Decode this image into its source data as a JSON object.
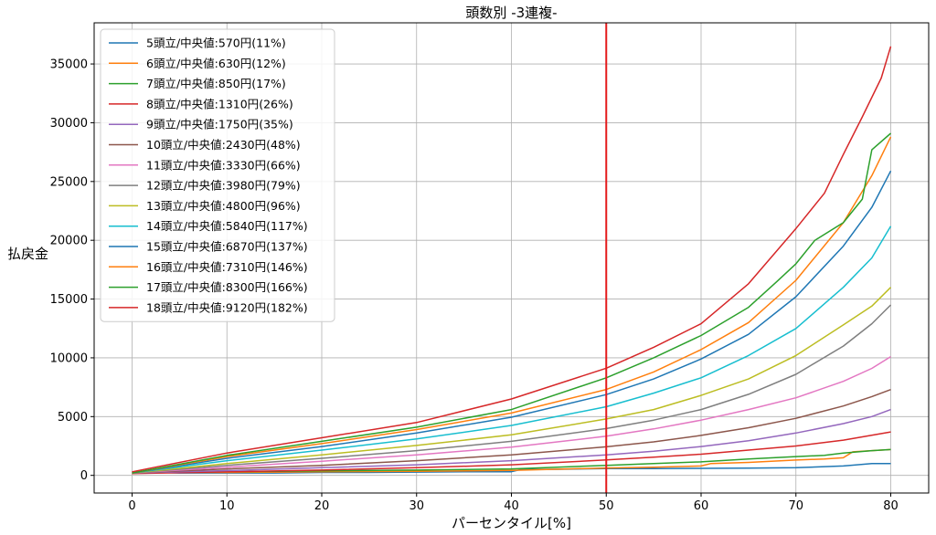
{
  "chart_data": {
    "type": "line",
    "title": "頭数別 -3連複-",
    "xlabel": "パーセンタイル[%]",
    "ylabel": "払戻金",
    "xlim": [
      -4,
      84
    ],
    "ylim": [
      -1500,
      38500
    ],
    "xticks": [
      0,
      10,
      20,
      30,
      40,
      50,
      60,
      70,
      80
    ],
    "yticks": [
      0,
      5000,
      10000,
      15000,
      20000,
      25000,
      30000,
      35000
    ],
    "grid": true,
    "legend_position": "top-left",
    "vline": {
      "x": 50,
      "color": "#e41a1c"
    },
    "series": [
      {
        "name": "5頭立/中央値:570円(11%)",
        "color": "#1f77b4",
        "points": [
          [
            0,
            300
          ],
          [
            5,
            200
          ],
          [
            10,
            200
          ],
          [
            15,
            200
          ],
          [
            20,
            250
          ],
          [
            25,
            250
          ],
          [
            30,
            280
          ],
          [
            35,
            300
          ],
          [
            40,
            310
          ],
          [
            41,
            500
          ],
          [
            45,
            520
          ],
          [
            50,
            570
          ],
          [
            55,
            580
          ],
          [
            60,
            600
          ],
          [
            65,
            620
          ],
          [
            70,
            650
          ],
          [
            75,
            800
          ],
          [
            78,
            1000
          ],
          [
            80,
            1000
          ]
        ]
      },
      {
        "name": "6頭立/中央値:630円(12%)",
        "color": "#ff7f0e",
        "points": [
          [
            0,
            250
          ],
          [
            10,
            250
          ],
          [
            20,
            300
          ],
          [
            30,
            350
          ],
          [
            40,
            420
          ],
          [
            50,
            630
          ],
          [
            55,
            700
          ],
          [
            60,
            800
          ],
          [
            61,
            1000
          ],
          [
            65,
            1100
          ],
          [
            70,
            1300
          ],
          [
            73,
            1400
          ],
          [
            75,
            1500
          ],
          [
            76,
            2000
          ],
          [
            80,
            2200
          ]
        ]
      },
      {
        "name": "7頭立/中央値:850円(17%)",
        "color": "#2ca02c",
        "points": [
          [
            0,
            250
          ],
          [
            10,
            300
          ],
          [
            20,
            380
          ],
          [
            30,
            450
          ],
          [
            40,
            550
          ],
          [
            50,
            850
          ],
          [
            55,
            1000
          ],
          [
            60,
            1150
          ],
          [
            65,
            1400
          ],
          [
            70,
            1600
          ],
          [
            73,
            1700
          ],
          [
            75,
            1900
          ],
          [
            78,
            2100
          ],
          [
            80,
            2200
          ]
        ]
      },
      {
        "name": "8頭立/中央値:1310円(26%)",
        "color": "#d62728",
        "points": [
          [
            0,
            150
          ],
          [
            10,
            300
          ],
          [
            20,
            450
          ],
          [
            30,
            650
          ],
          [
            40,
            900
          ],
          [
            50,
            1310
          ],
          [
            55,
            1550
          ],
          [
            60,
            1800
          ],
          [
            65,
            2150
          ],
          [
            70,
            2500
          ],
          [
            75,
            3000
          ],
          [
            80,
            3700
          ]
        ]
      },
      {
        "name": "9頭立/中央値:1750円(35%)",
        "color": "#9467bd",
        "points": [
          [
            0,
            200
          ],
          [
            10,
            400
          ],
          [
            20,
            650
          ],
          [
            30,
            900
          ],
          [
            40,
            1250
          ],
          [
            50,
            1750
          ],
          [
            55,
            2050
          ],
          [
            60,
            2450
          ],
          [
            65,
            2950
          ],
          [
            70,
            3600
          ],
          [
            75,
            4400
          ],
          [
            78,
            5000
          ],
          [
            80,
            5600
          ]
        ]
      },
      {
        "name": "10頭立/中央値:2430円(48%)",
        "color": "#8c564b",
        "points": [
          [
            0,
            200
          ],
          [
            10,
            550
          ],
          [
            20,
            850
          ],
          [
            30,
            1250
          ],
          [
            40,
            1750
          ],
          [
            50,
            2430
          ],
          [
            55,
            2850
          ],
          [
            60,
            3400
          ],
          [
            65,
            4050
          ],
          [
            70,
            4850
          ],
          [
            75,
            5900
          ],
          [
            78,
            6700
          ],
          [
            80,
            7300
          ]
        ]
      },
      {
        "name": "11頭立/中央値:3330円(66%)",
        "color": "#e377c2",
        "points": [
          [
            0,
            200
          ],
          [
            10,
            700
          ],
          [
            20,
            1200
          ],
          [
            30,
            1750
          ],
          [
            40,
            2400
          ],
          [
            50,
            3330
          ],
          [
            55,
            3950
          ],
          [
            60,
            4700
          ],
          [
            65,
            5600
          ],
          [
            70,
            6600
          ],
          [
            75,
            8000
          ],
          [
            78,
            9100
          ],
          [
            80,
            10100
          ]
        ]
      },
      {
        "name": "12頭立/中央値:3980円(79%)",
        "color": "#7f7f7f",
        "points": [
          [
            0,
            200
          ],
          [
            10,
            850
          ],
          [
            20,
            1450
          ],
          [
            30,
            2100
          ],
          [
            40,
            2900
          ],
          [
            50,
            3980
          ],
          [
            55,
            4700
          ],
          [
            60,
            5600
          ],
          [
            65,
            6900
          ],
          [
            70,
            8600
          ],
          [
            75,
            11000
          ],
          [
            78,
            12900
          ],
          [
            80,
            14500
          ]
        ]
      },
      {
        "name": "13頭立/中央値:4800円(96%)",
        "color": "#bcbd22",
        "points": [
          [
            0,
            200
          ],
          [
            10,
            1000
          ],
          [
            20,
            1750
          ],
          [
            30,
            2550
          ],
          [
            40,
            3450
          ],
          [
            50,
            4800
          ],
          [
            55,
            5600
          ],
          [
            60,
            6800
          ],
          [
            65,
            8200
          ],
          [
            70,
            10200
          ],
          [
            75,
            12800
          ],
          [
            78,
            14400
          ],
          [
            80,
            16000
          ]
        ]
      },
      {
        "name": "14頭立/中央値:5840円(117%)",
        "color": "#17becf",
        "points": [
          [
            0,
            200
          ],
          [
            10,
            1250
          ],
          [
            20,
            2150
          ],
          [
            30,
            3100
          ],
          [
            40,
            4250
          ],
          [
            50,
            5840
          ],
          [
            55,
            7000
          ],
          [
            60,
            8300
          ],
          [
            65,
            10200
          ],
          [
            70,
            12500
          ],
          [
            75,
            16000
          ],
          [
            78,
            18500
          ],
          [
            80,
            21200
          ]
        ]
      },
      {
        "name": "15頭立/中央値:6870円(137%)",
        "color": "#1f77b4",
        "points": [
          [
            0,
            200
          ],
          [
            10,
            1450
          ],
          [
            20,
            2450
          ],
          [
            30,
            3600
          ],
          [
            40,
            4950
          ],
          [
            50,
            6870
          ],
          [
            55,
            8200
          ],
          [
            60,
            9900
          ],
          [
            65,
            12000
          ],
          [
            70,
            15200
          ],
          [
            75,
            19500
          ],
          [
            78,
            22800
          ],
          [
            80,
            25900
          ]
        ]
      },
      {
        "name": "16頭立/中央値:7310円(146%)",
        "color": "#ff7f0e",
        "points": [
          [
            0,
            200
          ],
          [
            10,
            1600
          ],
          [
            20,
            2700
          ],
          [
            30,
            3900
          ],
          [
            40,
            5300
          ],
          [
            50,
            7310
          ],
          [
            55,
            8800
          ],
          [
            60,
            10700
          ],
          [
            65,
            13000
          ],
          [
            70,
            16600
          ],
          [
            75,
            21500
          ],
          [
            78,
            25500
          ],
          [
            80,
            28800
          ]
        ]
      },
      {
        "name": "17頭立/中央値:8300円(166%)",
        "color": "#2ca02c",
        "points": [
          [
            0,
            200
          ],
          [
            10,
            1700
          ],
          [
            20,
            2900
          ],
          [
            30,
            4100
          ],
          [
            40,
            5600
          ],
          [
            50,
            8300
          ],
          [
            55,
            10000
          ],
          [
            60,
            11900
          ],
          [
            65,
            14300
          ],
          [
            68,
            16500
          ],
          [
            70,
            18000
          ],
          [
            72,
            20000
          ],
          [
            75,
            21500
          ],
          [
            77,
            23500
          ],
          [
            78,
            27700
          ],
          [
            80,
            29100
          ]
        ]
      },
      {
        "name": "18頭立/中央値:9120円(182%)",
        "color": "#d62728",
        "points": [
          [
            0,
            300
          ],
          [
            10,
            1900
          ],
          [
            20,
            3200
          ],
          [
            30,
            4500
          ],
          [
            40,
            6500
          ],
          [
            50,
            9120
          ],
          [
            55,
            10900
          ],
          [
            60,
            12900
          ],
          [
            65,
            16300
          ],
          [
            70,
            21000
          ],
          [
            73,
            24000
          ],
          [
            75,
            27300
          ],
          [
            77,
            30500
          ],
          [
            79,
            33800
          ],
          [
            80,
            36500
          ]
        ]
      }
    ]
  }
}
